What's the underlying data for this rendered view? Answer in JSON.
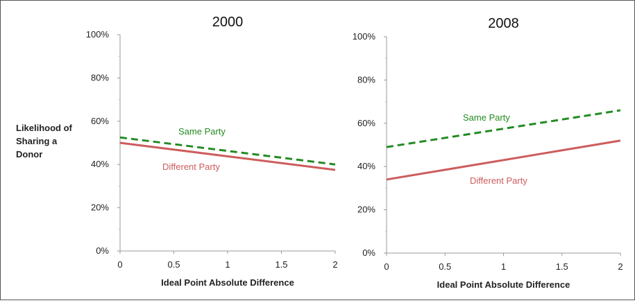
{
  "ylabel_lines": [
    "Likelihood of",
    "Sharing a",
    "Donor"
  ],
  "chart_data": [
    {
      "type": "line",
      "title": "2000",
      "xlabel": "Ideal Point Absolute Difference",
      "ylabel": "Likelihood of Sharing a Donor",
      "xlim": [
        0,
        2
      ],
      "ylim": [
        0,
        100
      ],
      "x_ticks": [
        "0",
        "0.5",
        "1",
        "1.5",
        "2"
      ],
      "y_ticks": [
        "0%",
        "20%",
        "40%",
        "60%",
        "80%",
        "100%"
      ],
      "grid": false,
      "series": [
        {
          "name": "Same Party",
          "style": "dashed",
          "color": "#228B22",
          "x": [
            0,
            2
          ],
          "y": [
            52.5,
            40
          ]
        },
        {
          "name": "Different Party",
          "style": "solid",
          "color": "#CD5C5C",
          "x": [
            0,
            2
          ],
          "y": [
            50,
            37.5
          ]
        }
      ]
    },
    {
      "type": "line",
      "title": "2008",
      "xlabel": "Ideal Point Absolute Difference",
      "ylabel": "",
      "xlim": [
        0,
        2
      ],
      "ylim": [
        0,
        100
      ],
      "x_ticks": [
        "0",
        "0.5",
        "1",
        "1.5",
        "2"
      ],
      "y_ticks": [
        "0%",
        "20%",
        "40%",
        "60%",
        "80%",
        "100%"
      ],
      "grid": false,
      "series": [
        {
          "name": "Same Party",
          "style": "dashed",
          "color": "#228B22",
          "x": [
            0,
            2
          ],
          "y": [
            49,
            66
          ]
        },
        {
          "name": "Different Party",
          "style": "solid",
          "color": "#CD5C5C",
          "x": [
            0,
            2
          ],
          "y": [
            34,
            52
          ]
        }
      ]
    }
  ]
}
